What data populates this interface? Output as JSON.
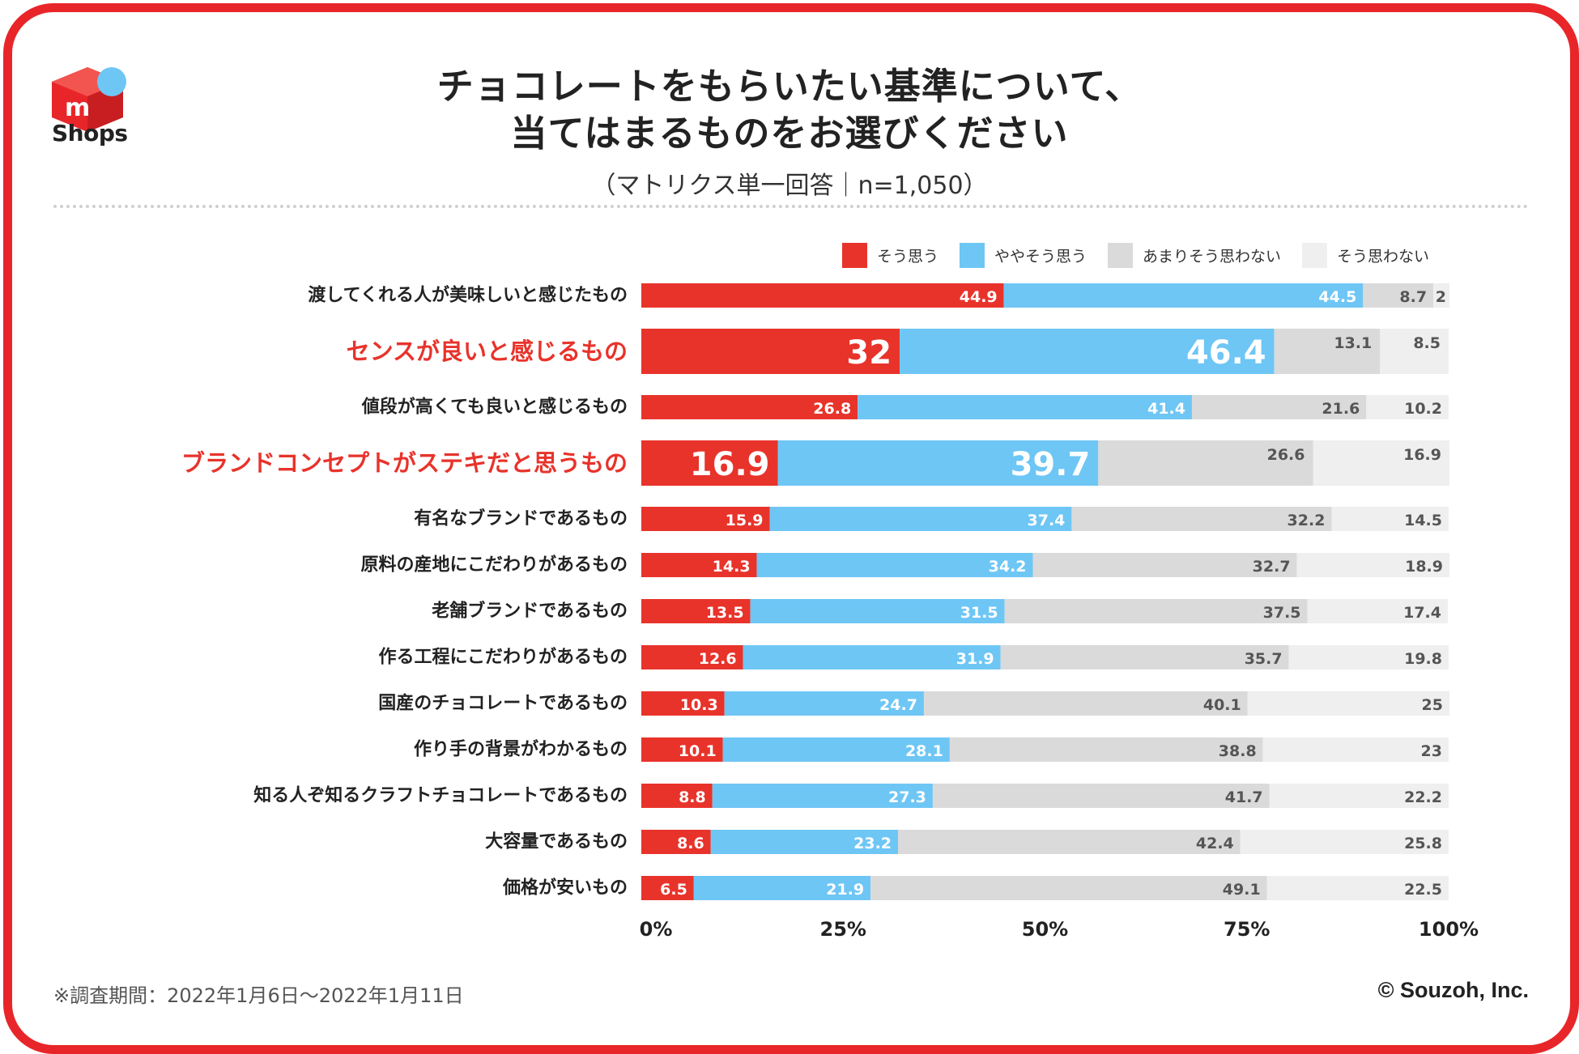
{
  "header": {
    "logo_text": "Shops",
    "title_line1": "チョコレートをもらいたい基準について、",
    "title_line2": "当てはまるものをお選びください",
    "subtitle": "（マトリクス単一回答｜n=1,050）"
  },
  "footer": {
    "note": "※調査期間：2022年1月6日〜2022年1月11日",
    "copyright": "© Souzoh, Inc."
  },
  "colors": {
    "brand": "#e8262a",
    "series": [
      "#e8332b",
      "#6ec6f5",
      "#dadada",
      "#efefef"
    ],
    "highlight_label": "#e8332b"
  },
  "chart_data": {
    "type": "bar",
    "orientation": "horizontal",
    "stacked": true,
    "xlim": [
      0,
      100
    ],
    "x_ticks": [
      "0%",
      "25%",
      "50%",
      "75%",
      "100%"
    ],
    "legend_position": "top-right",
    "legend": [
      "そう思う",
      "ややそう思う",
      "あまりそう思わない",
      "そう思わない"
    ],
    "categories": [
      "渡してくれる人が美味しいと感じたもの",
      "センスが良いと感じるもの",
      "値段が高くても良いと感じるもの",
      "ブランドコンセプトがステキだと思うもの",
      "有名なブランドであるもの",
      "原料の産地にこだわりがあるもの",
      "老舗ブランドであるもの",
      "作る工程にこだわりがあるもの",
      "国産のチョコレートであるもの",
      "作り手の背景がわかるもの",
      "知る人ぞ知るクラフトチョコレートであるもの",
      "大容量であるもの",
      "価格が安いもの"
    ],
    "highlighted": [
      false,
      true,
      false,
      true,
      false,
      false,
      false,
      false,
      false,
      false,
      false,
      false,
      false
    ],
    "series": [
      {
        "name": "そう思う",
        "values": [
          44.9,
          32,
          26.8,
          16.9,
          15.9,
          14.3,
          13.5,
          12.6,
          10.3,
          10.1,
          8.8,
          8.6,
          6.5
        ]
      },
      {
        "name": "ややそう思う",
        "values": [
          44.5,
          46.4,
          41.4,
          39.7,
          37.4,
          34.2,
          31.5,
          31.9,
          24.7,
          28.1,
          27.3,
          23.2,
          21.9
        ]
      },
      {
        "name": "あまりそう思わない",
        "values": [
          8.7,
          13.1,
          21.6,
          26.6,
          32.2,
          32.7,
          37.5,
          35.7,
          40.1,
          38.8,
          41.7,
          42.4,
          49.1
        ]
      },
      {
        "name": "そう思わない",
        "values": [
          2,
          8.5,
          10.2,
          16.9,
          14.5,
          18.9,
          17.4,
          19.8,
          25,
          23,
          22.2,
          25.8,
          22.5
        ]
      }
    ]
  }
}
